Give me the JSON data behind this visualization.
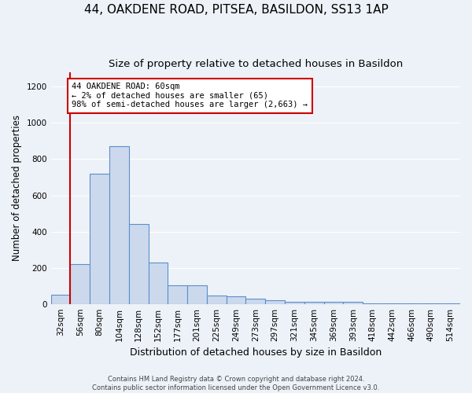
{
  "title": "44, OAKDENE ROAD, PITSEA, BASILDON, SS13 1AP",
  "subtitle": "Size of property relative to detached houses in Basildon",
  "xlabel": "Distribution of detached houses by size in Basildon",
  "ylabel": "Number of detached properties",
  "footnote1": "Contains HM Land Registry data © Crown copyright and database right 2024.",
  "footnote2": "Contains public sector information licensed under the Open Government Licence v3.0.",
  "bin_labels": [
    "32sqm",
    "56sqm",
    "80sqm",
    "104sqm",
    "128sqm",
    "152sqm",
    "177sqm",
    "201sqm",
    "225sqm",
    "249sqm",
    "273sqm",
    "297sqm",
    "321sqm",
    "345sqm",
    "369sqm",
    "393sqm",
    "418sqm",
    "442sqm",
    "466sqm",
    "490sqm",
    "514sqm"
  ],
  "bar_values": [
    50,
    220,
    720,
    870,
    440,
    230,
    105,
    105,
    45,
    40,
    30,
    20,
    10,
    10,
    10,
    10,
    5,
    5,
    5,
    5,
    5
  ],
  "bar_color": "#ccd9ed",
  "bar_edge_color": "#5b8fc9",
  "property_line_color": "#cc0000",
  "annotation_text": "44 OAKDENE ROAD: 60sqm\n← 2% of detached houses are smaller (65)\n98% of semi-detached houses are larger (2,663) →",
  "annotation_box_color": "#ffffff",
  "annotation_box_edge": "#cc0000",
  "ylim": [
    0,
    1280
  ],
  "yticks": [
    0,
    200,
    400,
    600,
    800,
    1000,
    1200
  ],
  "bg_color": "#edf2f8",
  "grid_color": "#ffffff",
  "title_fontsize": 11,
  "subtitle_fontsize": 9.5,
  "xlabel_fontsize": 9,
  "ylabel_fontsize": 8.5,
  "tick_fontsize": 7.5,
  "footnote_fontsize": 6,
  "annot_fontsize": 7.5
}
